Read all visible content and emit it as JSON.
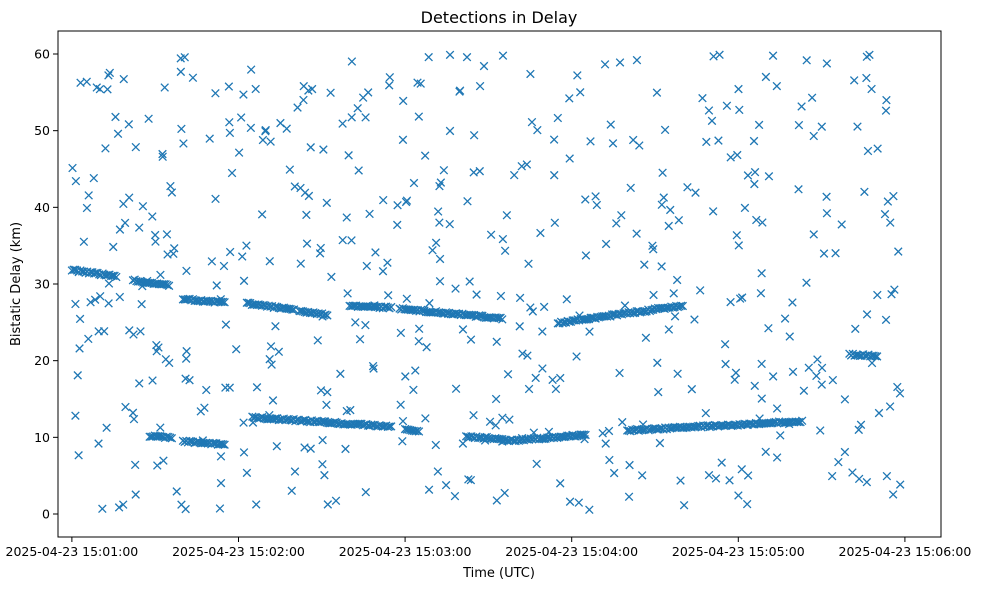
{
  "chart_data": {
    "type": "scatter",
    "title": "Detections in Delay",
    "xlabel": "Time (UTC)",
    "ylabel": "Bistatic Delay (km)",
    "x_ticks": [
      "2025-04-23 15:01:00",
      "2025-04-23 15:02:00",
      "2025-04-23 15:03:00",
      "2025-04-23 15:04:00",
      "2025-04-23 15:05:00",
      "2025-04-23 15:06:00"
    ],
    "y_ticks": [
      "0",
      "10",
      "20",
      "30",
      "40",
      "50",
      "60"
    ],
    "xlim": [
      "2025-04-23 15:00:55",
      "2025-04-23 15:06:13"
    ],
    "ylim": [
      -3,
      63
    ],
    "marker": "x",
    "grid": false,
    "color": "#1f77b4",
    "tracks": [
      {
        "segments": [
          {
            "t0": "2025-04-23 15:01:00",
            "t1": "2025-04-23 15:01:16",
            "y0": 31.8,
            "y1": 31.0
          },
          {
            "t0": "2025-04-23 15:01:22",
            "t1": "2025-04-23 15:01:35",
            "y0": 30.5,
            "y1": 29.8
          },
          {
            "t0": "2025-04-23 15:01:40",
            "t1": "2025-04-23 15:01:55",
            "y0": 28.0,
            "y1": 27.6
          },
          {
            "t0": "2025-04-23 15:02:03",
            "t1": "2025-04-23 15:02:20",
            "y0": 27.5,
            "y1": 26.6
          },
          {
            "t0": "2025-04-23 15:02:22",
            "t1": "2025-04-23 15:02:32",
            "y0": 26.4,
            "y1": 26.0
          },
          {
            "t0": "2025-04-23 15:02:40",
            "t1": "2025-04-23 15:02:55",
            "y0": 27.2,
            "y1": 26.9
          },
          {
            "t0": "2025-04-23 15:02:58",
            "t1": "2025-04-23 15:03:35",
            "y0": 26.8,
            "y1": 25.5
          },
          {
            "t0": "2025-04-23 15:03:55",
            "t1": "2025-04-23 15:04:40",
            "y0": 24.9,
            "y1": 27.2
          }
        ]
      },
      {
        "segments": [
          {
            "t0": "2025-04-23 15:01:28",
            "t1": "2025-04-23 15:01:36",
            "y0": 10.2,
            "y1": 9.9
          },
          {
            "t0": "2025-04-23 15:01:40",
            "t1": "2025-04-23 15:01:55",
            "y0": 9.5,
            "y1": 9.0
          },
          {
            "t0": "2025-04-23 15:02:05",
            "t1": "2025-04-23 15:02:55",
            "y0": 12.6,
            "y1": 11.4
          },
          {
            "t0": "2025-04-23 15:03:00",
            "t1": "2025-04-23 15:03:05",
            "y0": 11.0,
            "y1": 10.8
          },
          {
            "t0": "2025-04-23 15:03:22",
            "t1": "2025-04-23 15:03:35",
            "y0": 10.1,
            "y1": 9.8
          },
          {
            "t0": "2025-04-23 15:03:35",
            "t1": "2025-04-23 15:04:05",
            "y0": 9.5,
            "y1": 10.3
          },
          {
            "t0": "2025-04-23 15:04:20",
            "t1": "2025-04-23 15:05:23",
            "y0": 10.9,
            "y1": 12.1
          }
        ]
      },
      {
        "segments": [
          {
            "t0": "2025-04-23 15:05:40",
            "t1": "2025-04-23 15:05:50",
            "y0": 20.8,
            "y1": 20.6
          }
        ]
      }
    ],
    "clutter": {
      "count": 520,
      "y_range": [
        0.5,
        60
      ],
      "t_range": [
        "2025-04-23 15:01:00",
        "2025-04-23 15:06:00"
      ]
    }
  }
}
